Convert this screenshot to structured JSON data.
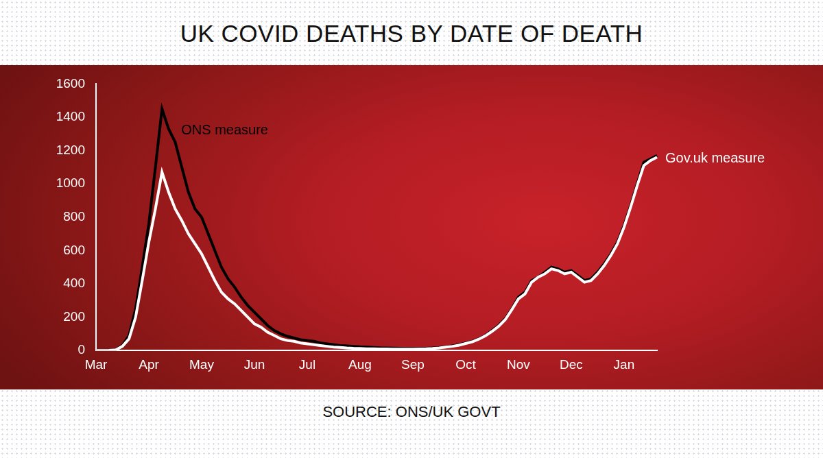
{
  "chart_data": {
    "type": "line",
    "title": "UK COVID DEATHS BY DATE OF DEATH",
    "source": "SOURCE: ONS/UK GOVT",
    "categories": [
      "Mar",
      null,
      null,
      null,
      null,
      null,
      null,
      null,
      "Apr",
      null,
      null,
      null,
      null,
      null,
      null,
      null,
      "May",
      null,
      null,
      null,
      null,
      null,
      null,
      null,
      "Jun",
      null,
      null,
      null,
      null,
      null,
      null,
      null,
      "Jul",
      null,
      null,
      null,
      null,
      null,
      null,
      null,
      "Aug",
      null,
      null,
      null,
      null,
      null,
      null,
      null,
      "Sep",
      null,
      null,
      null,
      null,
      null,
      null,
      null,
      "Oct",
      null,
      null,
      null,
      null,
      null,
      null,
      null,
      "Nov",
      null,
      null,
      null,
      null,
      null,
      null,
      null,
      "Dec",
      null,
      null,
      null,
      null,
      null,
      null,
      null,
      "Jan",
      null,
      null,
      null,
      null,
      null
    ],
    "series": [
      {
        "name": "ONS measure",
        "color": "#000000",
        "values": [
          0,
          0,
          1,
          5,
          30,
          90,
          250,
          500,
          760,
          1100,
          1450,
          1330,
          1250,
          1100,
          950,
          850,
          800,
          700,
          600,
          500,
          430,
          380,
          320,
          270,
          230,
          190,
          150,
          120,
          100,
          85,
          75,
          65,
          60,
          55,
          45,
          40,
          35,
          30,
          28,
          25,
          22,
          20,
          18,
          16,
          15,
          14,
          13,
          12,
          12,
          12,
          13,
          15,
          18,
          22,
          28,
          35,
          45,
          55,
          70,
          90,
          120,
          150,
          190,
          250,
          320,
          350,
          420,
          440,
          470,
          500,
          490,
          470,
          480,
          450,
          420,
          430,
          470,
          520,
          580,
          650,
          750,
          870,
          1000,
          1130,
          1150,
          1170
        ]
      },
      {
        "name": "Gov.uk measure",
        "color": "#ffffff",
        "values": [
          0,
          0,
          1,
          4,
          25,
          70,
          200,
          420,
          650,
          850,
          1070,
          950,
          850,
          780,
          700,
          640,
          580,
          500,
          420,
          350,
          310,
          280,
          240,
          200,
          160,
          140,
          110,
          90,
          70,
          60,
          55,
          45,
          40,
          35,
          30,
          25,
          20,
          18,
          15,
          13,
          12,
          10,
          10,
          9,
          9,
          8,
          8,
          8,
          8,
          9,
          10,
          12,
          15,
          20,
          25,
          32,
          42,
          52,
          68,
          88,
          115,
          145,
          185,
          245,
          310,
          340,
          410,
          440,
          460,
          490,
          480,
          460,
          470,
          440,
          410,
          420,
          460,
          510,
          570,
          640,
          740,
          860,
          990,
          1110,
          1140,
          1160
        ]
      }
    ],
    "ylim": [
      0,
      1600
    ],
    "yticks": [
      0,
      200,
      400,
      600,
      800,
      1000,
      1200,
      1400,
      1600
    ],
    "grid": false
  }
}
